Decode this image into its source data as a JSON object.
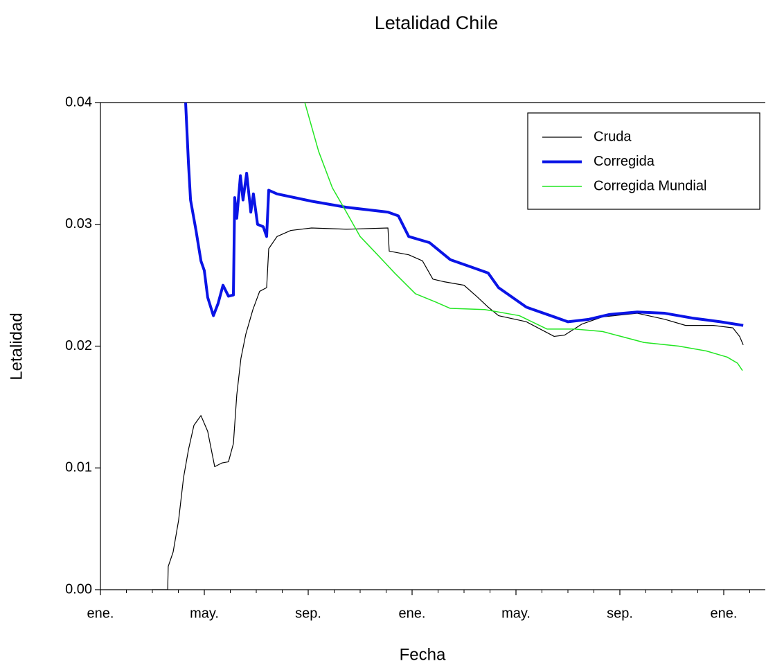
{
  "chart_data": {
    "type": "line",
    "title": "Letalidad Chile",
    "x_label": "Fecha",
    "y_label": "Letalidad",
    "xlim": [
      0,
      25.6
    ],
    "ylim": [
      0,
      0.04
    ],
    "xticks": [
      {
        "value": 0,
        "label": "ene."
      },
      {
        "value": 4,
        "label": "may."
      },
      {
        "value": 8,
        "label": "sep."
      },
      {
        "value": 12,
        "label": "ene."
      },
      {
        "value": 16,
        "label": "may."
      },
      {
        "value": 20,
        "label": "sep."
      },
      {
        "value": 24,
        "label": "ene."
      }
    ],
    "xminor_ticks": [
      1,
      2,
      3,
      5,
      6,
      7,
      9,
      10,
      11,
      13,
      14,
      15,
      17,
      18,
      19,
      21,
      22,
      23,
      25
    ],
    "yticks": [
      {
        "value": 0,
        "label": "0.00"
      },
      0.01,
      0.02,
      0.03,
      0.04
    ],
    "legend": "upper right",
    "series": [
      {
        "name": "Cruda",
        "color": "#000000",
        "width": 1.2,
        "x": [
          2.0,
          2.59,
          2.61,
          2.8,
          3.01,
          3.2,
          3.39,
          3.6,
          3.87,
          4.13,
          4.4,
          4.67,
          4.93,
          5.12,
          5.25,
          5.41,
          5.6,
          5.87,
          6.13,
          6.4,
          6.48,
          6.8,
          7.33,
          8.13,
          9.47,
          11.07,
          11.12,
          11.87,
          12.4,
          12.8,
          13.2,
          14.0,
          14.53,
          14.93,
          15.33,
          16.4,
          17.47,
          17.87,
          18.53,
          19.33,
          20.67,
          21.73,
          22.53,
          23.6,
          24.35,
          24.61,
          24.75
        ],
        "values": [
          0,
          0,
          0.0019,
          0.0031,
          0.0057,
          0.0092,
          0.0115,
          0.0135,
          0.0143,
          0.013,
          0.0101,
          0.0104,
          0.0105,
          0.012,
          0.016,
          0.019,
          0.021,
          0.023,
          0.0245,
          0.0248,
          0.028,
          0.029,
          0.0295,
          0.0297,
          0.0296,
          0.0297,
          0.0278,
          0.0275,
          0.027,
          0.0255,
          0.0253,
          0.025,
          0.024,
          0.0232,
          0.0225,
          0.022,
          0.0208,
          0.0209,
          0.0218,
          0.0224,
          0.0227,
          0.0222,
          0.0217,
          0.0217,
          0.0215,
          0.0208,
          0.0201
        ]
      },
      {
        "name": "Corregida",
        "color": "#0a14e6",
        "width": 4,
        "x": [
          3.28,
          3.39,
          3.47,
          3.68,
          3.87,
          4.0,
          4.13,
          4.35,
          4.53,
          4.72,
          4.93,
          5.12,
          5.17,
          5.25,
          5.39,
          5.49,
          5.63,
          5.79,
          5.89,
          6.05,
          6.27,
          6.4,
          6.48,
          6.8,
          8.13,
          9.47,
          11.07,
          11.47,
          11.87,
          12.67,
          13.47,
          14.27,
          14.93,
          15.33,
          16.4,
          17.47,
          18.0,
          18.8,
          19.6,
          20.67,
          21.73,
          22.8,
          23.87,
          24.75
        ],
        "values": [
          0.04,
          0.035,
          0.032,
          0.0295,
          0.027,
          0.0262,
          0.024,
          0.0225,
          0.0235,
          0.025,
          0.0241,
          0.0242,
          0.0322,
          0.0305,
          0.034,
          0.032,
          0.0342,
          0.031,
          0.0325,
          0.03,
          0.0298,
          0.029,
          0.0328,
          0.0325,
          0.0319,
          0.0314,
          0.031,
          0.0307,
          0.029,
          0.0285,
          0.0271,
          0.0265,
          0.026,
          0.0248,
          0.0232,
          0.0224,
          0.022,
          0.0222,
          0.0226,
          0.0228,
          0.0227,
          0.0223,
          0.022,
          0.0217
        ]
      },
      {
        "name": "Corregida Mundial",
        "color": "#22e622",
        "width": 1.5,
        "x": [
          7.87,
          8.4,
          8.93,
          9.47,
          10.0,
          10.67,
          11.33,
          12.13,
          12.93,
          13.47,
          14.8,
          16.13,
          17.2,
          18.27,
          19.33,
          20.93,
          22.27,
          23.33,
          24.13,
          24.53,
          24.72
        ],
        "values": [
          0.04,
          0.036,
          0.033,
          0.031,
          0.029,
          0.0275,
          0.026,
          0.0243,
          0.0236,
          0.0231,
          0.023,
          0.0225,
          0.0214,
          0.0214,
          0.0212,
          0.0203,
          0.02,
          0.0196,
          0.0191,
          0.0186,
          0.018
        ]
      }
    ]
  }
}
